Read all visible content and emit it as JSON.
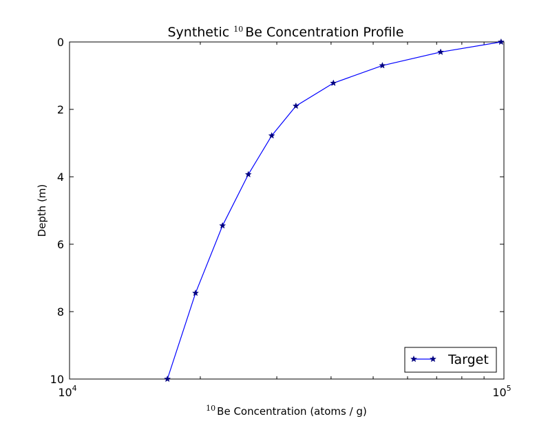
{
  "chart_data": {
    "type": "line",
    "title": {
      "prefix": "Synthetic ",
      "superscript": "10",
      "suffix": "Be Concentration Profile"
    },
    "xlabel": {
      "superscript": "10",
      "text": "Be Concentration (atoms / g)"
    },
    "ylabel": "Depth (m)",
    "xscale": "log",
    "xlim": [
      10000,
      100000
    ],
    "ylim": [
      10,
      0
    ],
    "y_inverted": true,
    "xticks": [
      {
        "base": "10",
        "exp": "4"
      },
      {
        "base": "10",
        "exp": "5"
      }
    ],
    "yticks": [
      "0",
      "2",
      "4",
      "6",
      "8",
      "10"
    ],
    "ytick_values": [
      0,
      2,
      4,
      6,
      8,
      10
    ],
    "legend_position": "lower-right",
    "series": [
      {
        "name": "Target",
        "color": "#0000ff",
        "marker": "star",
        "x": [
          98500,
          71500,
          52500,
          40500,
          33200,
          29200,
          25800,
          22500,
          19500,
          16800
        ],
        "y": [
          0.0,
          0.3,
          0.7,
          1.22,
          1.9,
          2.78,
          3.93,
          5.45,
          7.45,
          10.0
        ]
      }
    ]
  }
}
